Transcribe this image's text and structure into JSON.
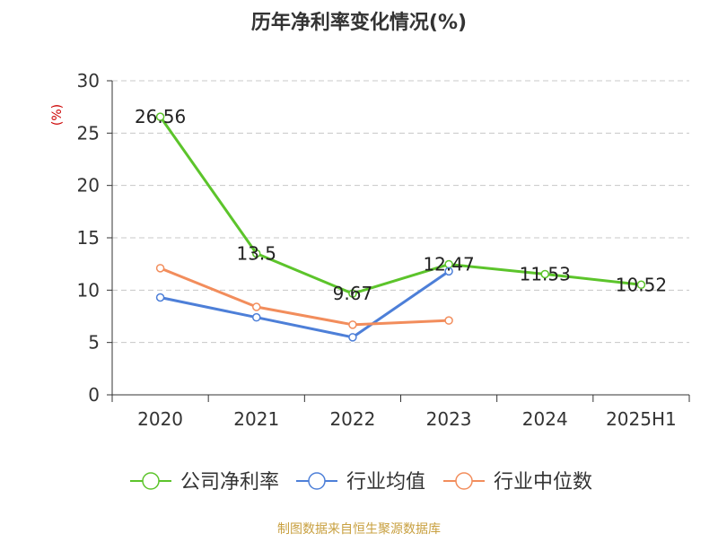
{
  "chart_data": {
    "type": "line",
    "title": "历年净利率变化情况(%)",
    "ylabel": "(%)",
    "xlabel": "",
    "categories": [
      "2020",
      "2021",
      "2022",
      "2023",
      "2024",
      "2025H1"
    ],
    "ylim": [
      0,
      30
    ],
    "yticks": [
      0,
      5,
      10,
      15,
      20,
      25,
      30
    ],
    "grid": true,
    "legend_position": "bottom",
    "series": [
      {
        "name": "公司净利率",
        "color": "#5cc42b",
        "values": [
          26.56,
          13.5,
          9.67,
          12.47,
          11.53,
          10.52
        ],
        "labels": [
          "26.56",
          "13.5",
          "9.67",
          "12.47",
          "11.53",
          "10.52"
        ]
      },
      {
        "name": "行业均值",
        "color": "#4d7fd8",
        "values": [
          9.3,
          7.4,
          5.5,
          11.8,
          null,
          null
        ]
      },
      {
        "name": "行业中位数",
        "color": "#f28d5c",
        "values": [
          12.1,
          8.4,
          6.7,
          7.1,
          null,
          null
        ]
      }
    ]
  },
  "source_note": "制图数据来自恒生聚源数据库"
}
